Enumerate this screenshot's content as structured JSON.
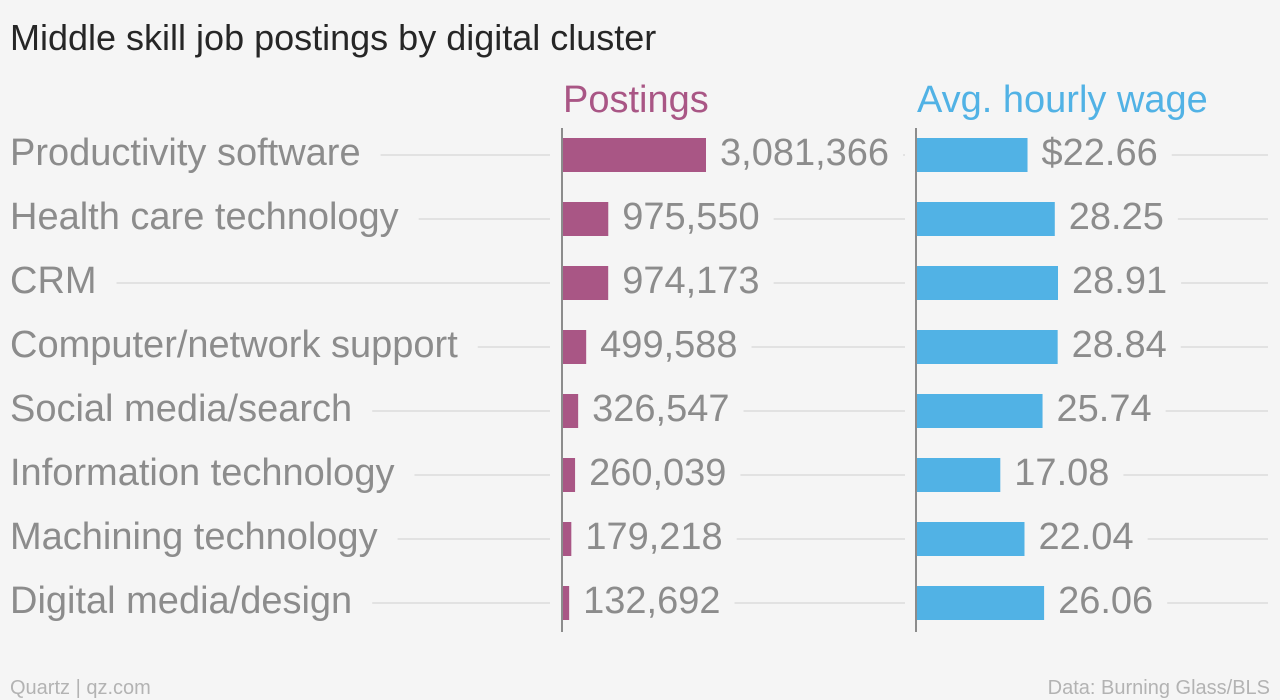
{
  "chart_data": {
    "type": "bar",
    "orientation": "horizontal",
    "title": "Middle skill job postings by digital cluster",
    "categories": [
      "Productivity software",
      "Health care technology",
      "CRM",
      "Computer/network support",
      "Social media/search",
      "Information technology",
      "Machining technology",
      "Digital media/design"
    ],
    "series": [
      {
        "name": "Postings",
        "color": "#a95685",
        "values": [
          3081366,
          975550,
          974173,
          499588,
          326547,
          260039,
          179218,
          132692
        ],
        "labels": [
          "3,081,366",
          "975,550",
          "974,173",
          "499,588",
          "326,547",
          "260,039",
          "179,218",
          "132,692"
        ]
      },
      {
        "name": "Avg. hourly wage",
        "color": "#51b2e5",
        "values": [
          22.66,
          28.25,
          28.91,
          28.84,
          25.74,
          17.08,
          22.04,
          26.06
        ],
        "labels": [
          "$22.66",
          "28.25",
          "28.91",
          "28.84",
          "25.74",
          "17.08",
          "22.04",
          "26.06"
        ]
      }
    ],
    "grid": true,
    "legend": "column headers"
  },
  "footer": {
    "source_left": "Quartz | qz.com",
    "source_right": "Data: Burning Glass/BLS"
  }
}
